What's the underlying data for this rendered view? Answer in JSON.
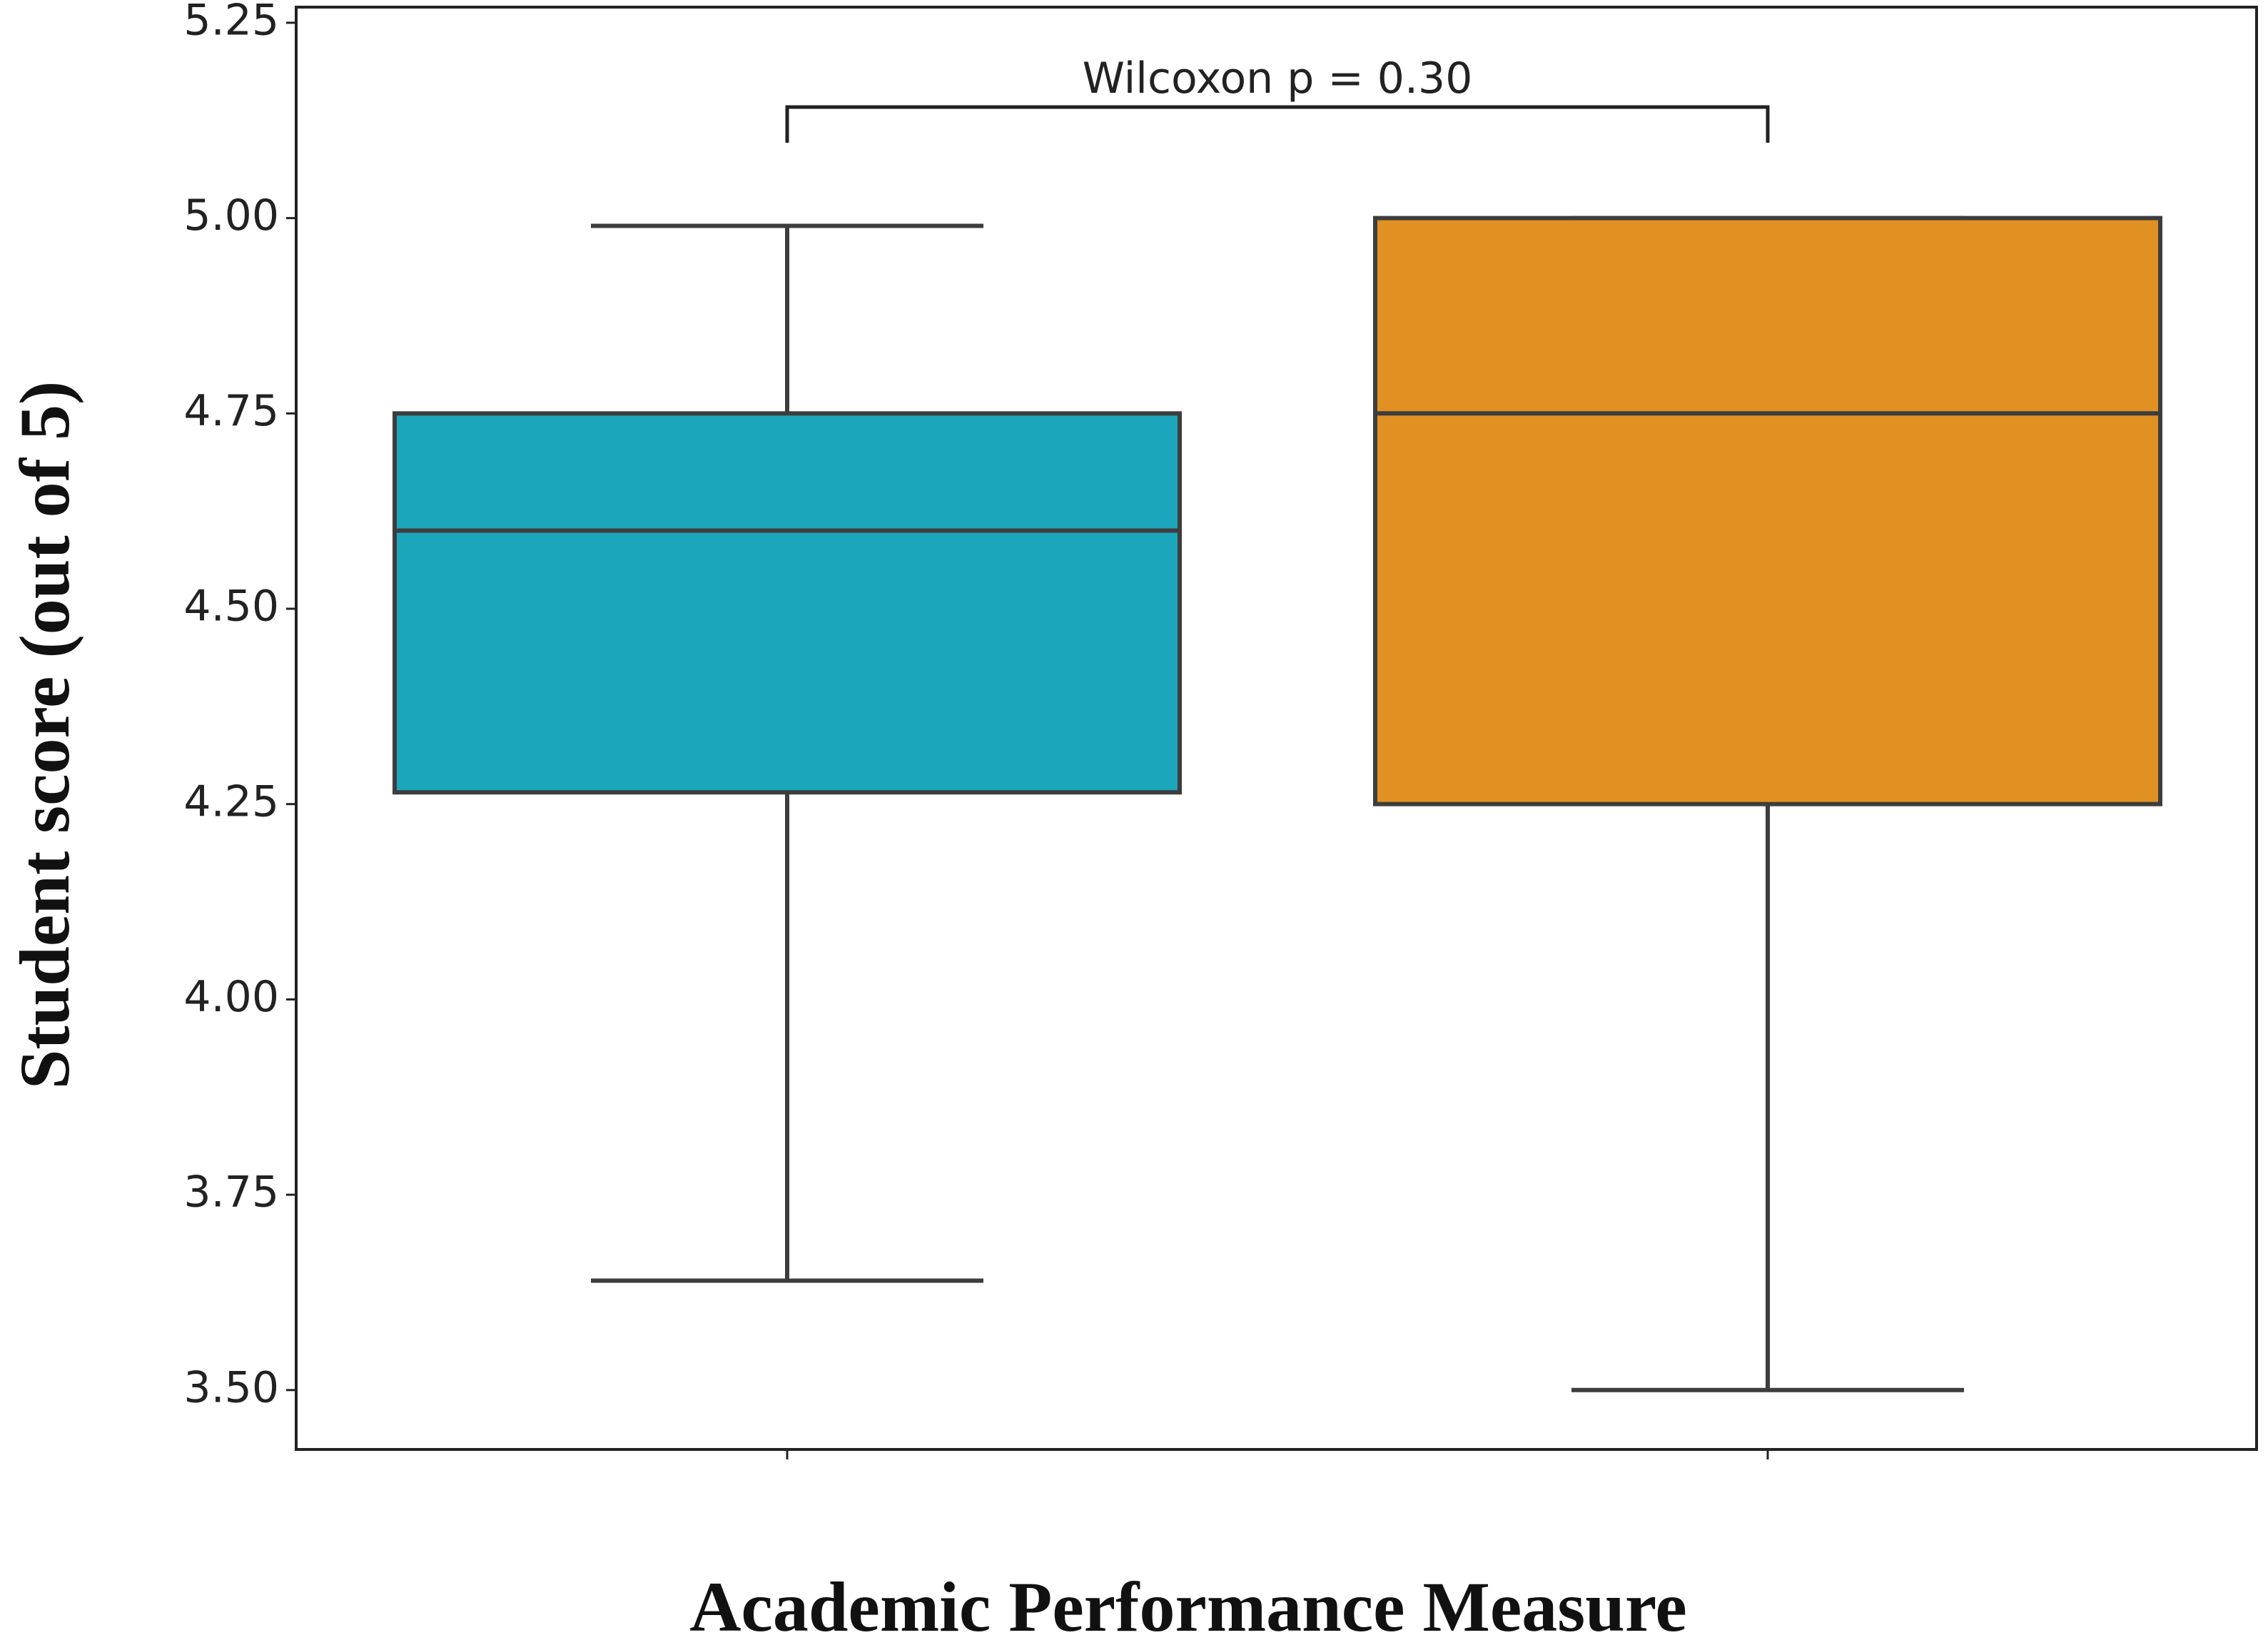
{
  "chart_data": {
    "type": "box",
    "x_label": "Academic Performance Measure",
    "y_label": "Student score (out of 5)",
    "annotation": "Wilcoxon p = 0.30",
    "categories": [
      null,
      null
    ],
    "boxes": [
      {
        "color": "#1ba6bc",
        "min": 3.64,
        "q1": 4.265,
        "median": 4.6,
        "q3": 4.75,
        "max": 4.99
      },
      {
        "color": "#e09122",
        "min": 3.5,
        "q1": 4.25,
        "median": 4.75,
        "q3": 5.0,
        "max": 5.0
      }
    ],
    "ylim": [
      3.424,
      5.27
    ],
    "yticks": [
      {
        "value": 3.5,
        "label": "3.50"
      },
      3.75,
      {
        "value": 4.0,
        "label": "4.00"
      },
      4.25,
      {
        "value": 4.5,
        "label": "4.50"
      },
      4.75,
      {
        "value": 5.0,
        "label": "5.00"
      },
      5.25
    ],
    "grid": false
  }
}
